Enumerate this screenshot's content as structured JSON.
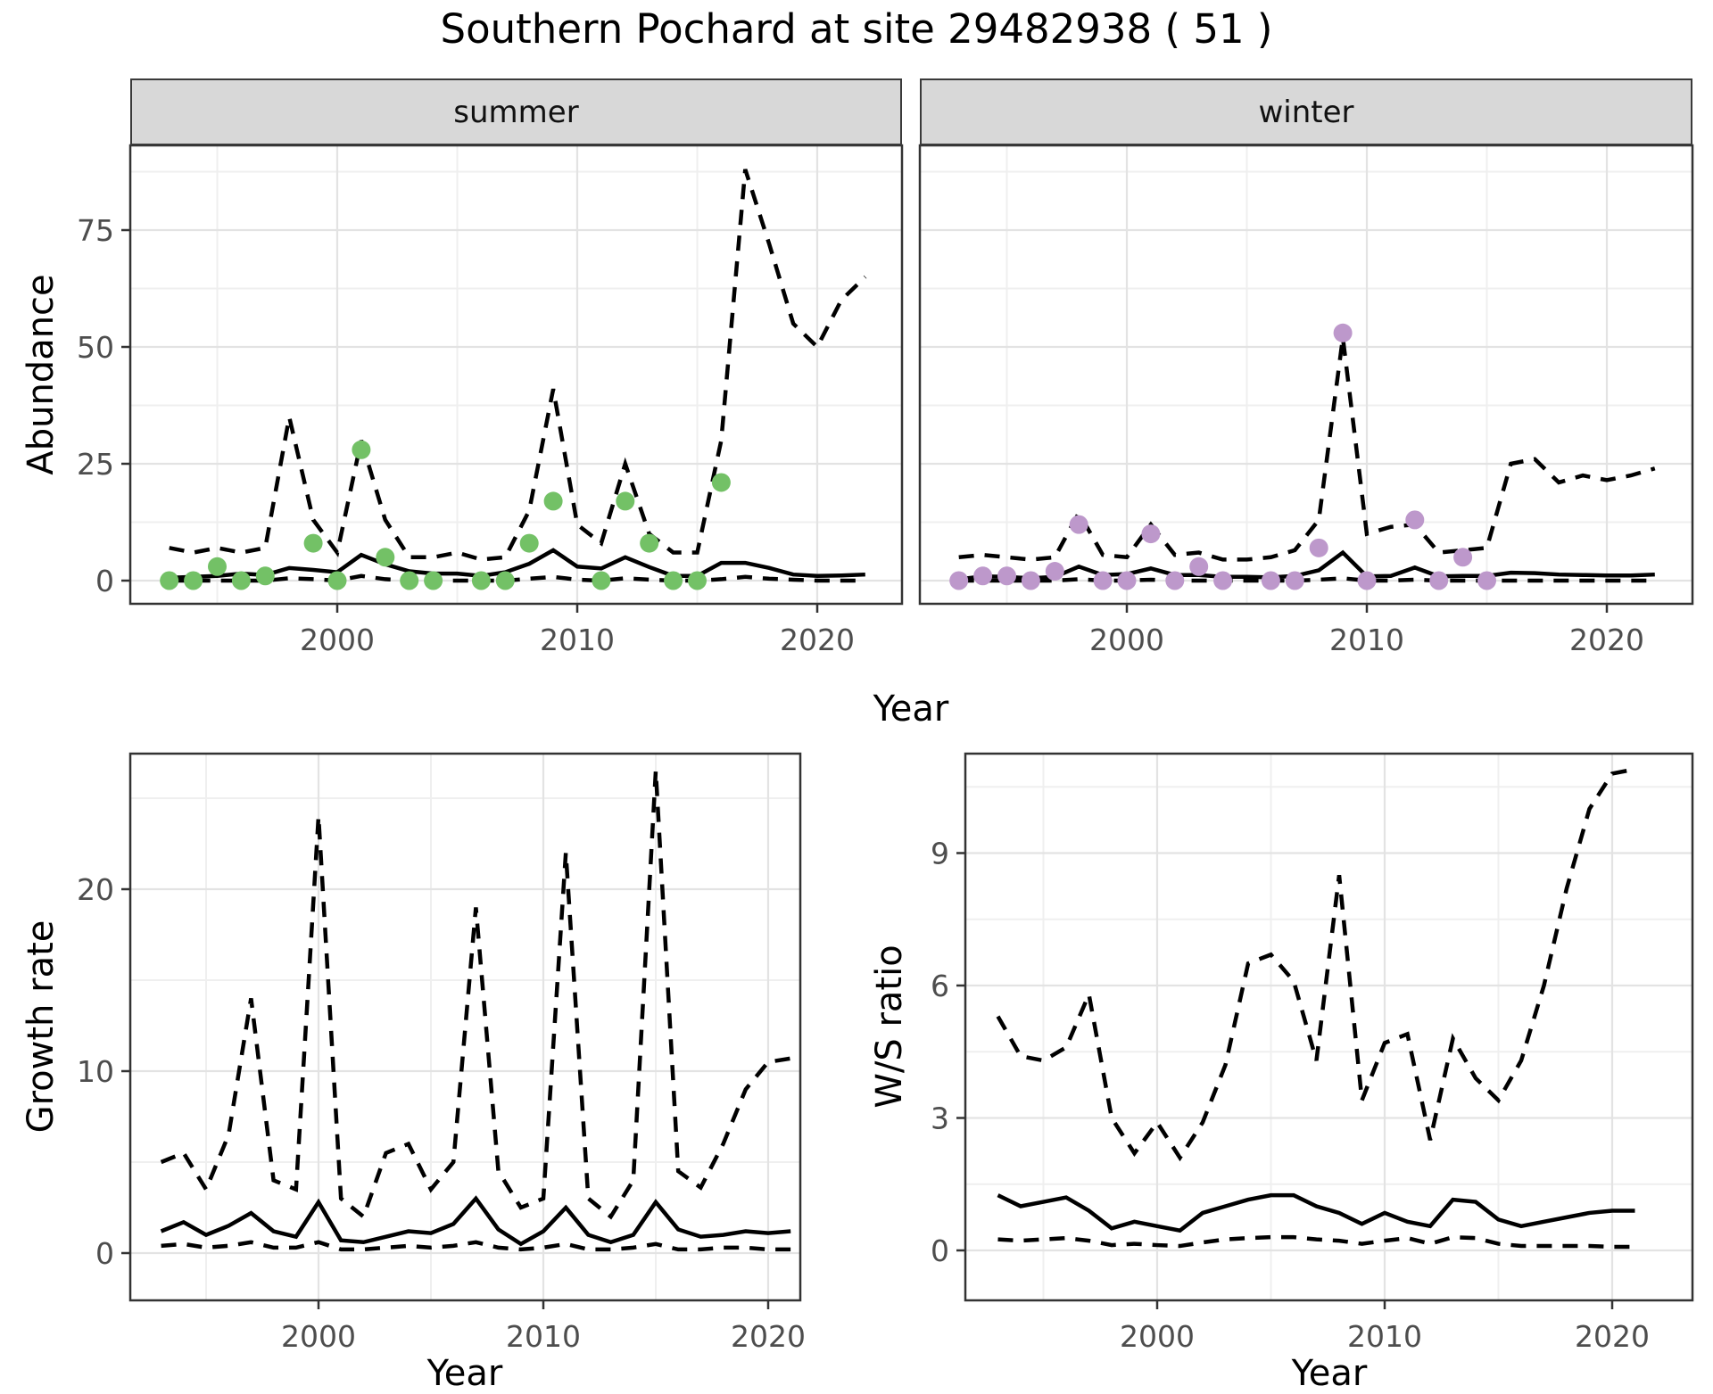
{
  "title": "Southern Pochard at site 29482938 ( 51 )",
  "facets": {
    "summer": "summer",
    "winter": "winter"
  },
  "axis": {
    "abundance": "Abundance",
    "year_top": "Year",
    "growth_rate": "Growth rate",
    "ws_ratio": "W/S ratio",
    "year_bottom_left": "Year",
    "year_bottom_right": "Year"
  },
  "colors": {
    "point_summer": "#73C166",
    "point_winter": "#BD98CB",
    "line": "#000000",
    "strip_bg": "#D8D8D8",
    "grid_major": "#E3E3E3",
    "grid_minor": "#EFEFEF",
    "tick_text": "#4D4D4D",
    "border": "#333333"
  },
  "chart_data": [
    {
      "id": "abundance-summer",
      "type": "line",
      "facet": "summer",
      "xlabel": "Year",
      "ylabel": "Abundance",
      "xlim": [
        1991.4,
        2023.4
      ],
      "ylim": [
        -5,
        93
      ],
      "x_ticks": [
        2000,
        2010,
        2020
      ],
      "y_ticks": [
        0,
        25,
        50,
        75
      ],
      "grid": true,
      "years": [
        1993,
        1994,
        1995,
        1996,
        1997,
        1998,
        1999,
        2000,
        2001,
        2002,
        2003,
        2004,
        2005,
        2006,
        2007,
        2008,
        2009,
        2010,
        2011,
        2012,
        2013,
        2014,
        2015,
        2016,
        2017,
        2018,
        2019,
        2020,
        2021,
        2022
      ],
      "series": [
        {
          "name": "ci_upper",
          "style": "dashed",
          "values": [
            7,
            6,
            7,
            6,
            7,
            35,
            13,
            6,
            30,
            13,
            5,
            5,
            6,
            4.5,
            5,
            15,
            41,
            12,
            8,
            25,
            10,
            6,
            6,
            30,
            88,
            72,
            55,
            50,
            60,
            65
          ]
        },
        {
          "name": "ci_lower",
          "style": "dashed",
          "values": [
            0,
            0,
            0,
            0,
            0,
            0.5,
            0.3,
            0,
            1,
            0.3,
            0,
            0,
            0,
            0,
            0,
            0.4,
            0.8,
            0.2,
            0,
            0.5,
            0.2,
            0,
            0,
            0.3,
            0.8,
            0.4,
            0.2,
            0,
            0,
            0
          ]
        },
        {
          "name": "median",
          "style": "solid",
          "values": [
            0.6,
            0.8,
            1,
            1.5,
            1.2,
            2.7,
            2.3,
            1.8,
            5.5,
            3.5,
            2,
            1.5,
            1.5,
            1,
            1.8,
            3.6,
            6.5,
            3,
            2.6,
            5,
            2.9,
            1,
            1,
            3.8,
            3.8,
            2.7,
            1.3,
            1,
            1.1,
            1.3
          ]
        }
      ],
      "points": {
        "name": "observed_counts_summer",
        "color": "#73C166",
        "data": [
          [
            1993,
            0
          ],
          [
            1994,
            0
          ],
          [
            1995,
            3
          ],
          [
            1996,
            0
          ],
          [
            1997,
            1
          ],
          [
            1999,
            8
          ],
          [
            2000,
            0
          ],
          [
            2001,
            28
          ],
          [
            2002,
            5
          ],
          [
            2003,
            0
          ],
          [
            2004,
            0
          ],
          [
            2006,
            0
          ],
          [
            2007,
            0
          ],
          [
            2008,
            8
          ],
          [
            2009,
            17
          ],
          [
            2011,
            0
          ],
          [
            2012,
            17
          ],
          [
            2013,
            8
          ],
          [
            2014,
            0
          ],
          [
            2015,
            0
          ],
          [
            2016,
            21
          ]
        ]
      }
    },
    {
      "id": "abundance-winter",
      "type": "line",
      "facet": "winter",
      "xlabel": "Year",
      "ylabel": "Abundance",
      "xlim": [
        1991.4,
        2023.4
      ],
      "ylim": [
        -5,
        93
      ],
      "x_ticks": [
        2000,
        2010,
        2020
      ],
      "y_ticks": [
        0,
        25,
        50,
        75
      ],
      "grid": true,
      "years": [
        1993,
        1994,
        1995,
        1996,
        1997,
        1998,
        1999,
        2000,
        2001,
        2002,
        2003,
        2004,
        2005,
        2006,
        2007,
        2008,
        2009,
        2010,
        2011,
        2012,
        2013,
        2014,
        2015,
        2016,
        2017,
        2018,
        2019,
        2020,
        2021,
        2022
      ],
      "series": [
        {
          "name": "ci_upper",
          "style": "dashed",
          "values": [
            5,
            5.5,
            5,
            4.5,
            5,
            14.5,
            5.5,
            5,
            12,
            5.5,
            6,
            4.5,
            4.5,
            5,
            6.5,
            13,
            52,
            10,
            11.5,
            12,
            6,
            6.5,
            7,
            25,
            26,
            21,
            22.5,
            21.5,
            22.5,
            24
          ]
        },
        {
          "name": "ci_lower",
          "style": "dashed",
          "values": [
            0,
            0,
            0,
            0,
            0,
            0.3,
            0,
            0,
            0.2,
            0,
            0,
            0,
            0,
            0,
            0,
            0.2,
            0.5,
            0,
            0,
            0.2,
            0,
            0,
            0,
            0,
            0,
            0,
            0,
            0,
            0,
            0
          ]
        },
        {
          "name": "median",
          "style": "solid",
          "values": [
            0.3,
            0.9,
            0.8,
            0.5,
            0.8,
            3,
            1.2,
            1.4,
            2.6,
            1.2,
            1.2,
            0.8,
            0.8,
            0.7,
            1,
            2.2,
            6,
            0.9,
            1,
            2.8,
            0.9,
            1,
            1,
            1.7,
            1.6,
            1.3,
            1.2,
            1.1,
            1.1,
            1.3
          ]
        }
      ],
      "points": {
        "name": "observed_counts_winter",
        "color": "#BD98CB",
        "data": [
          [
            1993,
            0
          ],
          [
            1994,
            1
          ],
          [
            1995,
            1
          ],
          [
            1996,
            0
          ],
          [
            1997,
            2
          ],
          [
            1998,
            12
          ],
          [
            1999,
            0
          ],
          [
            2000,
            0
          ],
          [
            2001,
            10
          ],
          [
            2002,
            0
          ],
          [
            2003,
            3
          ],
          [
            2004,
            0
          ],
          [
            2006,
            0
          ],
          [
            2007,
            0
          ],
          [
            2008,
            7
          ],
          [
            2009,
            53
          ],
          [
            2010,
            0
          ],
          [
            2012,
            13
          ],
          [
            2013,
            0
          ],
          [
            2014,
            5
          ],
          [
            2015,
            0
          ]
        ]
      }
    },
    {
      "id": "growth-rate",
      "type": "line",
      "facet": null,
      "xlabel": "Year",
      "ylabel": "Growth rate",
      "xlim": [
        1991.4,
        2022.8
      ],
      "ylim": [
        -2.6,
        27.5
      ],
      "x_ticks": [
        2000,
        2010,
        2020
      ],
      "y_ticks": [
        0,
        10,
        20
      ],
      "grid": true,
      "years": [
        1993,
        1994,
        1995,
        1996,
        1997,
        1998,
        1999,
        2000,
        2001,
        2002,
        2003,
        2004,
        2005,
        2006,
        2007,
        2008,
        2009,
        2010,
        2011,
        2012,
        2013,
        2014,
        2015,
        2016,
        2017,
        2018,
        2019,
        2020,
        2021
      ],
      "series": [
        {
          "name": "ci_upper",
          "style": "dashed",
          "values": [
            5,
            5.5,
            3.5,
            6.5,
            14,
            4,
            3.5,
            24,
            3,
            2,
            5.5,
            6,
            3.5,
            5,
            19,
            4.5,
            2.5,
            3,
            22,
            3,
            2,
            4,
            26.5,
            4.5,
            3.6,
            6,
            9,
            10.5,
            10.7
          ]
        },
        {
          "name": "ci_lower",
          "style": "dashed",
          "values": [
            0.4,
            0.5,
            0.3,
            0.4,
            0.6,
            0.3,
            0.3,
            0.6,
            0.2,
            0.2,
            0.3,
            0.4,
            0.3,
            0.4,
            0.6,
            0.3,
            0.2,
            0.3,
            0.5,
            0.2,
            0.2,
            0.3,
            0.5,
            0.2,
            0.2,
            0.3,
            0.3,
            0.2,
            0.2
          ]
        },
        {
          "name": "median",
          "style": "solid",
          "values": [
            1.2,
            1.7,
            1,
            1.5,
            2.2,
            1.2,
            0.9,
            2.8,
            0.7,
            0.6,
            0.9,
            1.2,
            1.1,
            1.6,
            3,
            1.3,
            0.5,
            1.2,
            2.5,
            1,
            0.6,
            1,
            2.8,
            1.3,
            0.9,
            1,
            1.2,
            1.1,
            1.2
          ]
        }
      ],
      "points": null
    },
    {
      "id": "ws-ratio",
      "type": "line",
      "facet": null,
      "xlabel": "Year",
      "ylabel": "W/S ratio",
      "xlim": [
        1991.6,
        2023.9
      ],
      "ylim": [
        -1.1,
        11.25
      ],
      "x_ticks": [
        2000,
        2010,
        2020
      ],
      "y_ticks": [
        0,
        3,
        6,
        9
      ],
      "grid": true,
      "years": [
        1993,
        1994,
        1995,
        1996,
        1997,
        1998,
        1999,
        2000,
        2001,
        2002,
        2003,
        2004,
        2005,
        2006,
        2007,
        2008,
        2009,
        2010,
        2011,
        2012,
        2013,
        2014,
        2015,
        2016,
        2017,
        2018,
        2019,
        2020,
        2021
      ],
      "series": [
        {
          "name": "ci_upper",
          "style": "dashed",
          "values": [
            5.3,
            4.4,
            4.3,
            4.6,
            5.8,
            3,
            2.2,
            2.9,
            2.1,
            2.9,
            4.2,
            6.5,
            6.7,
            6.1,
            4.3,
            8.5,
            3.4,
            4.7,
            4.9,
            2.5,
            4.8,
            3.9,
            3.4,
            4.3,
            6,
            8.2,
            10,
            10.8,
            10.9
          ]
        },
        {
          "name": "ci_lower",
          "style": "dashed",
          "values": [
            0.25,
            0.22,
            0.25,
            0.28,
            0.22,
            0.12,
            0.15,
            0.12,
            0.1,
            0.18,
            0.25,
            0.28,
            0.3,
            0.3,
            0.25,
            0.22,
            0.15,
            0.22,
            0.28,
            0.15,
            0.3,
            0.28,
            0.15,
            0.1,
            0.1,
            0.1,
            0.1,
            0.08,
            0.08
          ]
        },
        {
          "name": "median",
          "style": "solid",
          "values": [
            1.25,
            1,
            1.1,
            1.2,
            0.9,
            0.5,
            0.65,
            0.55,
            0.45,
            0.85,
            1,
            1.15,
            1.25,
            1.25,
            1,
            0.85,
            0.6,
            0.85,
            0.65,
            0.55,
            1.15,
            1.1,
            0.7,
            0.55,
            0.65,
            0.75,
            0.85,
            0.9,
            0.9
          ]
        }
      ],
      "points": null
    }
  ]
}
